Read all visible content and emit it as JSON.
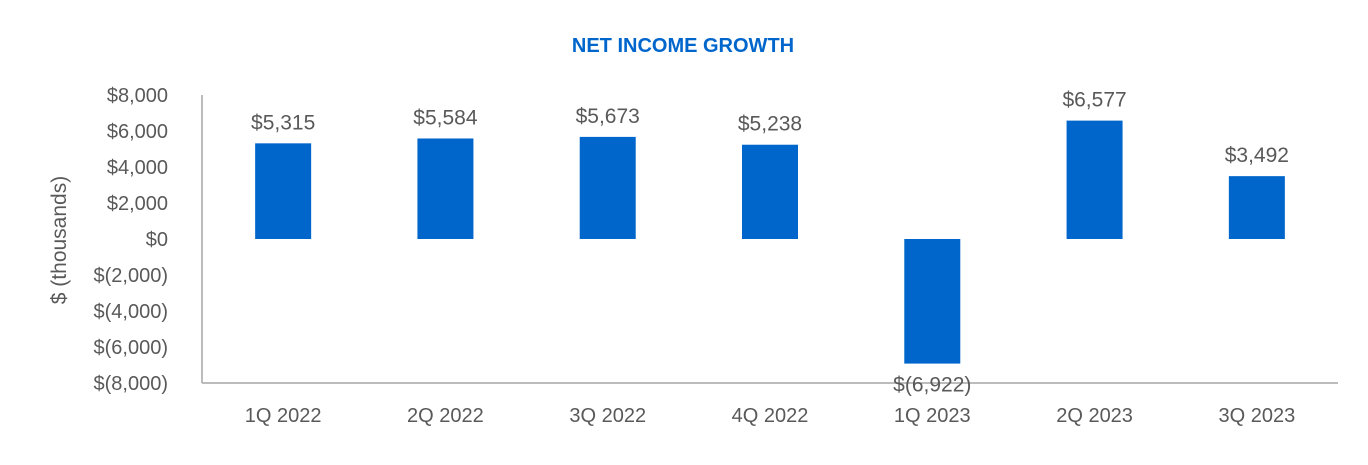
{
  "chart_data": {
    "type": "bar",
    "title": "NET INCOME GROWTH",
    "xlabel": "",
    "ylabel": "$ (thousands)",
    "categories": [
      "1Q 2022",
      "2Q 2022",
      "3Q 2022",
      "4Q 2022",
      "1Q 2023",
      "2Q 2023",
      "3Q 2023"
    ],
    "values": [
      5315,
      5584,
      5673,
      5238,
      -6922,
      6577,
      3492
    ],
    "data_labels": [
      "$5,315",
      "$5,584",
      "$5,673",
      "$5,238",
      "$(6,922)",
      "$6,577",
      "$3,492"
    ],
    "ylim": [
      -8000,
      8000
    ],
    "yticks": [
      8000,
      6000,
      4000,
      2000,
      0,
      -2000,
      -4000,
      -6000,
      -8000
    ],
    "ytick_labels": [
      "$8,000",
      "$6,000",
      "$4,000",
      "$2,000",
      "$0",
      "$(2,000)",
      "$(4,000)",
      "$(6,000)",
      "$(8,000)"
    ],
    "grid": false,
    "legend": "none",
    "colors": {
      "bar": "#0066CC",
      "title": "#0066CC",
      "text": "#595959",
      "axis": "#A6A6A6"
    }
  }
}
